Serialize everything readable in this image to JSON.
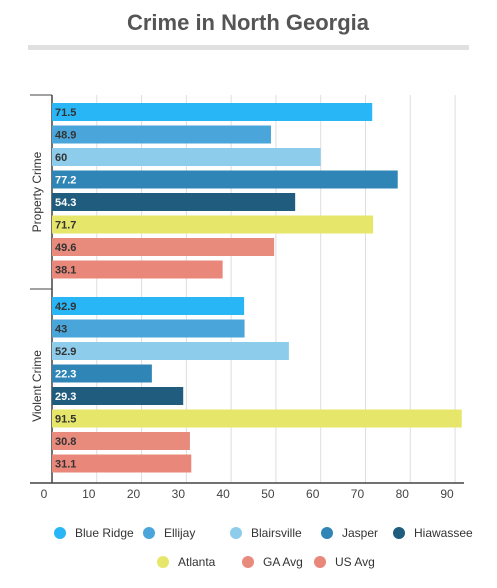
{
  "chart_data": {
    "type": "bar",
    "orientation": "horizontal",
    "title": "Crime in North Georgia",
    "categories": [
      "Property Crime",
      "Violent Crime"
    ],
    "series": [
      {
        "name": "Blue Ridge",
        "color": "#29b6f6",
        "values": [
          71.5,
          42.9
        ]
      },
      {
        "name": "Ellijay",
        "color": "#4aa6da",
        "values": [
          48.9,
          43
        ]
      },
      {
        "name": "Blairsville",
        "color": "#8dcdeb",
        "values": [
          60,
          52.9
        ]
      },
      {
        "name": "Jasper",
        "color": "#2f85b5",
        "values": [
          77.2,
          22.3
        ]
      },
      {
        "name": "Hiawassee",
        "color": "#1f5c7e",
        "values": [
          54.3,
          29.3
        ]
      },
      {
        "name": "Atlanta",
        "color": "#e6e66b",
        "values": [
          71.7,
          91.5
        ]
      },
      {
        "name": "GA Avg",
        "color": "#e88b7d",
        "values": [
          49.6,
          30.8
        ]
      },
      {
        "name": "US Avg",
        "color": "#e8877a",
        "values": [
          38.1,
          31.1
        ]
      }
    ],
    "xlim": [
      0,
      92
    ],
    "xticks": [
      0,
      10,
      20,
      30,
      40,
      50,
      60,
      70,
      80,
      90
    ],
    "grid": true,
    "legend": "bottom"
  }
}
